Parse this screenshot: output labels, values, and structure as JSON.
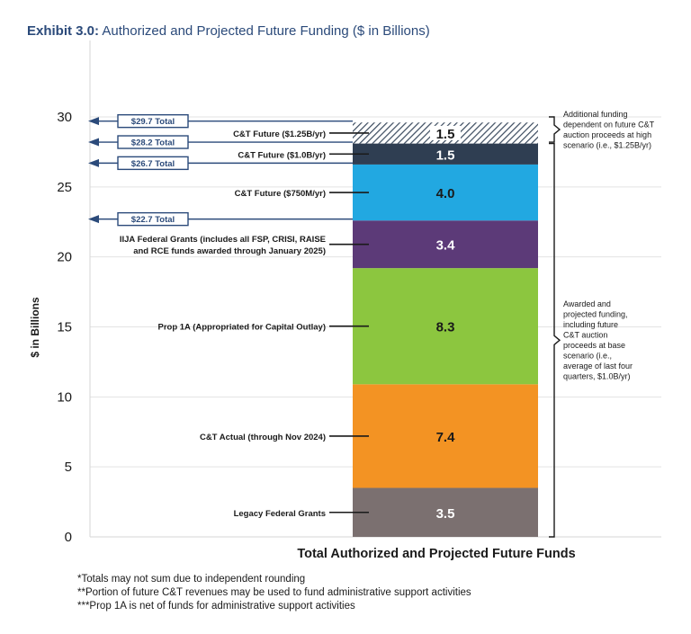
{
  "title": {
    "bold": "Exhibit 3.0:",
    "rest": " Authorized and Projected Future Funding ($ in Billions)"
  },
  "footnotes": [
    "*Totals may not sum due to independent rounding",
    "**Portion of future C&T revenues may be used to fund administrative support activities",
    "***Prop 1A is net of funds for administrative support activities"
  ],
  "chart_data": {
    "type": "bar",
    "stacked": true,
    "xlabel": "Total Authorized and Projected Future Funds",
    "ylabel": "$ in Billions",
    "ylim": [
      0,
      30
    ],
    "yticks": [
      0,
      5,
      10,
      15,
      20,
      25,
      30
    ],
    "grid": true,
    "categories": [
      "Total Authorized and Projected Future Funds"
    ],
    "series": [
      {
        "name": "Legacy Federal Grants",
        "value": 3.5,
        "label": "3.5",
        "color": "#7b7070",
        "label_color": "#ffffff"
      },
      {
        "name": "C&T Actual (through Nov 2024)",
        "value": 7.4,
        "label": "7.4",
        "color": "#f39323",
        "label_color": "#1a1a1a"
      },
      {
        "name": "Prop 1A (Appropriated for Capital Outlay)",
        "value": 8.3,
        "label": "8.3",
        "color": "#8cc63f",
        "label_color": "#1a1a1a"
      },
      {
        "name": "IIJA Federal Grants (includes all FSP, CRISI, RAISE|and RCE funds awarded through January 2025)",
        "value": 3.4,
        "label": "3.4",
        "color": "#5c3a78",
        "label_color": "#ffffff"
      },
      {
        "name": "C&T Future ($750M/yr)",
        "value": 4.0,
        "label": "4.0",
        "color": "#22a8e1",
        "label_color": "#1a1a1a"
      },
      {
        "name": "C&T Future ($1.0B/yr)",
        "value": 1.5,
        "label": "1.5",
        "color": "#2f3e52",
        "label_color": "#ffffff"
      },
      {
        "name": "C&T Future ($1.25B/yr)",
        "value": 1.5,
        "label": "1.5",
        "color": "hatch",
        "label_color": "#1a1a1a"
      }
    ],
    "totals": [
      {
        "label": "$29.7 Total",
        "value": 29.7
      },
      {
        "label": "$28.2 Total",
        "value": 28.2
      },
      {
        "label": "$26.7 Total",
        "value": 26.7
      },
      {
        "label": "$22.7 Total",
        "value": 22.7
      }
    ],
    "brackets": [
      {
        "text": "Additional funding|dependent on future C&T|auction proceeds at high|scenario (i.e., $1.25B/yr)"
      },
      {
        "text": "Awarded and|projected funding,|including future|C&T auction|proceeds at base|scenario (i.e.,|average of last four|quarters, $1.0B/yr)"
      }
    ]
  }
}
